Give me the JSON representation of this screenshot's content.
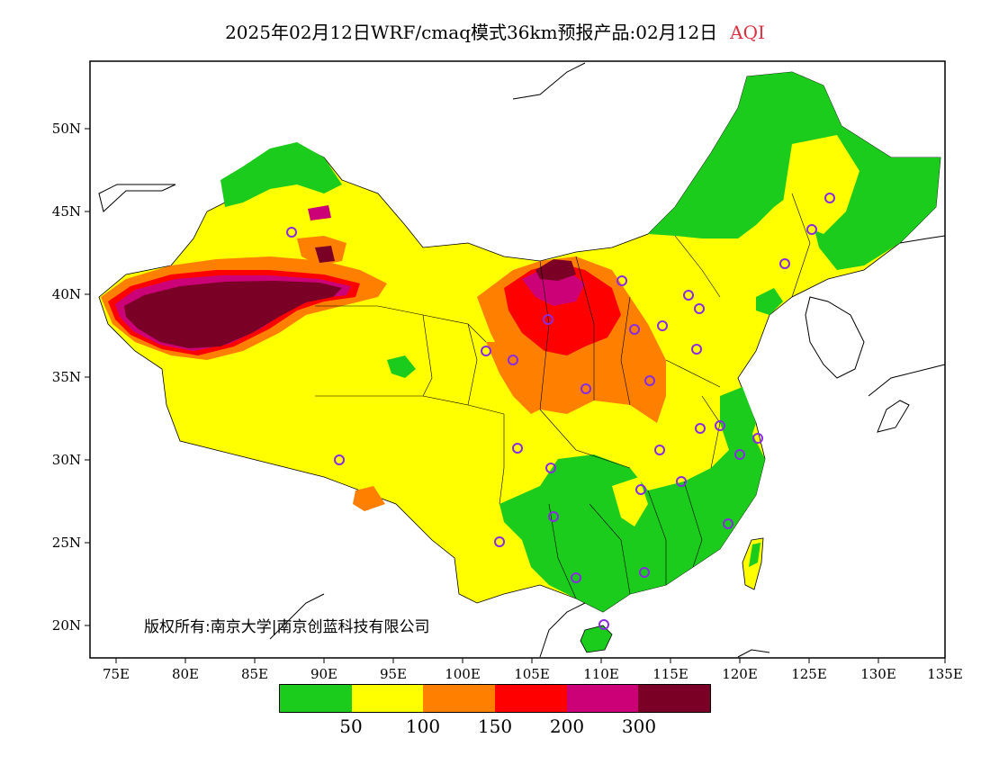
{
  "title": {
    "main": "2025年02月12日WRF/cmaq模式36km预报产品:02月12日",
    "product": "AQI"
  },
  "copyright": "版权所有:南京大学|南京创蓝科技有限公司",
  "axes": {
    "longitude_labels": [
      "75E",
      "80E",
      "85E",
      "90E",
      "95E",
      "100E",
      "105E",
      "110E",
      "115E",
      "120E",
      "125E",
      "130E",
      "135E"
    ],
    "latitude_labels": [
      "50N",
      "45N",
      "40N",
      "35N",
      "30N",
      "25N",
      "20N"
    ]
  },
  "legend": {
    "colors": [
      "#1ccc1c",
      "#ffff00",
      "#ff8000",
      "#ff0000",
      "#cc0077",
      "#7a0025"
    ],
    "labels": [
      "50",
      "100",
      "150",
      "200",
      "300"
    ]
  },
  "map": {
    "base_color": "#ffffff",
    "boundary_color": "#000000",
    "station_marker_color": "#8a2be2"
  }
}
